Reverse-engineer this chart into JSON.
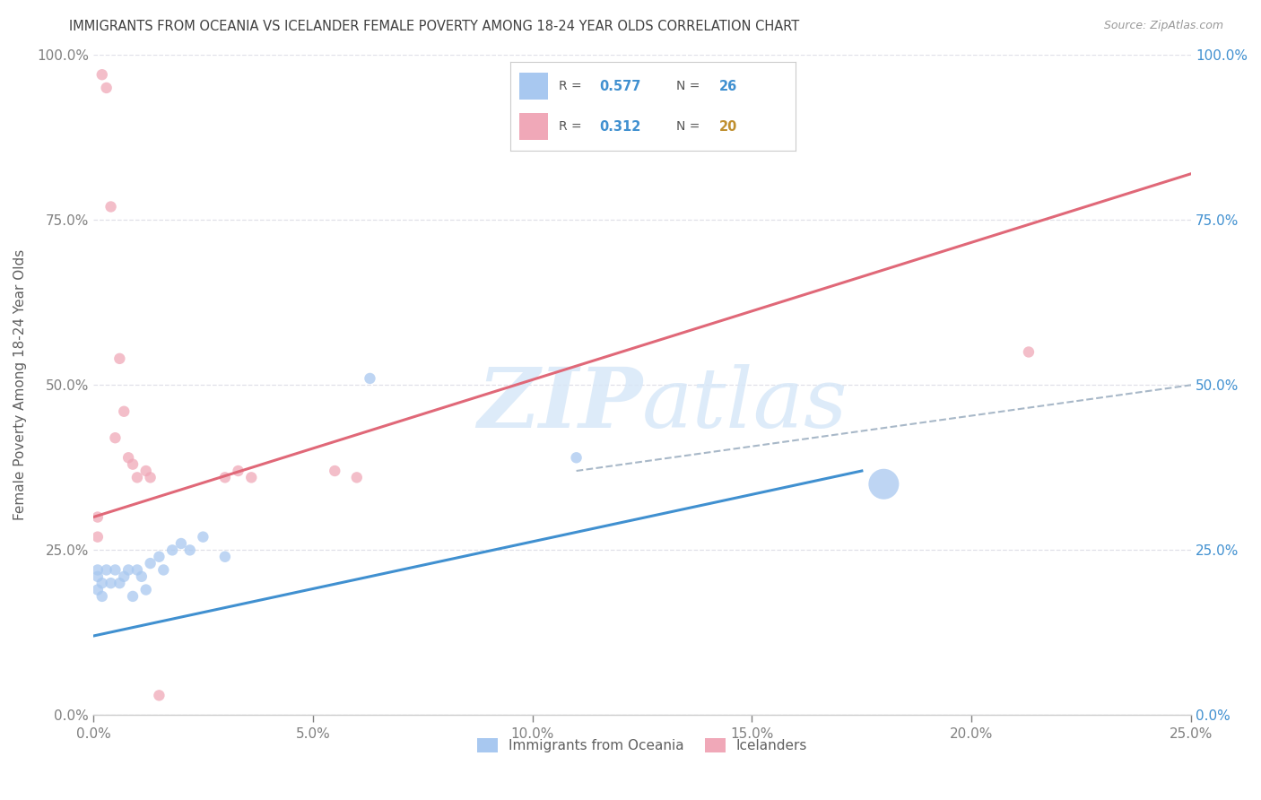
{
  "title": "IMMIGRANTS FROM OCEANIA VS ICELANDER FEMALE POVERTY AMONG 18-24 YEAR OLDS CORRELATION CHART",
  "source": "Source: ZipAtlas.com",
  "ylabel": "Female Poverty Among 18-24 Year Olds",
  "xlabel_blue": "Immigrants from Oceania",
  "xlabel_pink": "Icelanders",
  "xlim": [
    0.0,
    0.25
  ],
  "ylim": [
    0.0,
    1.0
  ],
  "blue_R": "0.577",
  "blue_N": "26",
  "pink_R": "0.312",
  "pink_N": "20",
  "blue_color": "#a8c8f0",
  "pink_color": "#f0a8b8",
  "blue_line_color": "#4090d0",
  "pink_line_color": "#e06878",
  "dashed_line_color": "#a8b8c8",
  "watermark_color": "#d8e8f8",
  "title_color": "#404040",
  "label_color": "#606060",
  "tick_color_left": "#808080",
  "tick_color_right": "#4090d0",
  "grid_color": "#e0e0e8",
  "blue_scatter_x": [
    0.001,
    0.001,
    0.001,
    0.002,
    0.002,
    0.003,
    0.004,
    0.005,
    0.006,
    0.007,
    0.008,
    0.009,
    0.01,
    0.011,
    0.012,
    0.013,
    0.015,
    0.016,
    0.018,
    0.02,
    0.022,
    0.025,
    0.03,
    0.063,
    0.11,
    0.18
  ],
  "blue_scatter_y": [
    0.21,
    0.19,
    0.22,
    0.2,
    0.18,
    0.22,
    0.2,
    0.22,
    0.2,
    0.21,
    0.22,
    0.18,
    0.22,
    0.21,
    0.19,
    0.23,
    0.24,
    0.22,
    0.25,
    0.26,
    0.25,
    0.27,
    0.24,
    0.51,
    0.39,
    0.35
  ],
  "blue_scatter_sizes": [
    80,
    80,
    80,
    80,
    80,
    80,
    80,
    80,
    80,
    80,
    80,
    80,
    80,
    80,
    80,
    80,
    80,
    80,
    80,
    80,
    80,
    80,
    80,
    80,
    80,
    600
  ],
  "pink_scatter_x": [
    0.001,
    0.001,
    0.002,
    0.003,
    0.004,
    0.005,
    0.006,
    0.007,
    0.008,
    0.009,
    0.01,
    0.012,
    0.013,
    0.015,
    0.03,
    0.033,
    0.036,
    0.055,
    0.06,
    0.213
  ],
  "pink_scatter_y": [
    0.27,
    0.3,
    0.97,
    0.95,
    0.77,
    0.42,
    0.54,
    0.46,
    0.39,
    0.38,
    0.36,
    0.37,
    0.36,
    0.03,
    0.36,
    0.37,
    0.36,
    0.37,
    0.36,
    0.55
  ],
  "pink_scatter_sizes": [
    80,
    80,
    80,
    80,
    80,
    80,
    80,
    80,
    80,
    80,
    80,
    80,
    80,
    80,
    80,
    80,
    80,
    80,
    80,
    80
  ],
  "blue_line_x": [
    0.0,
    0.175
  ],
  "blue_line_y": [
    0.12,
    0.37
  ],
  "pink_line_x": [
    0.0,
    0.25
  ],
  "pink_line_y": [
    0.3,
    0.82
  ],
  "dashed_line_x": [
    0.11,
    0.25
  ],
  "dashed_line_y": [
    0.37,
    0.5
  ]
}
